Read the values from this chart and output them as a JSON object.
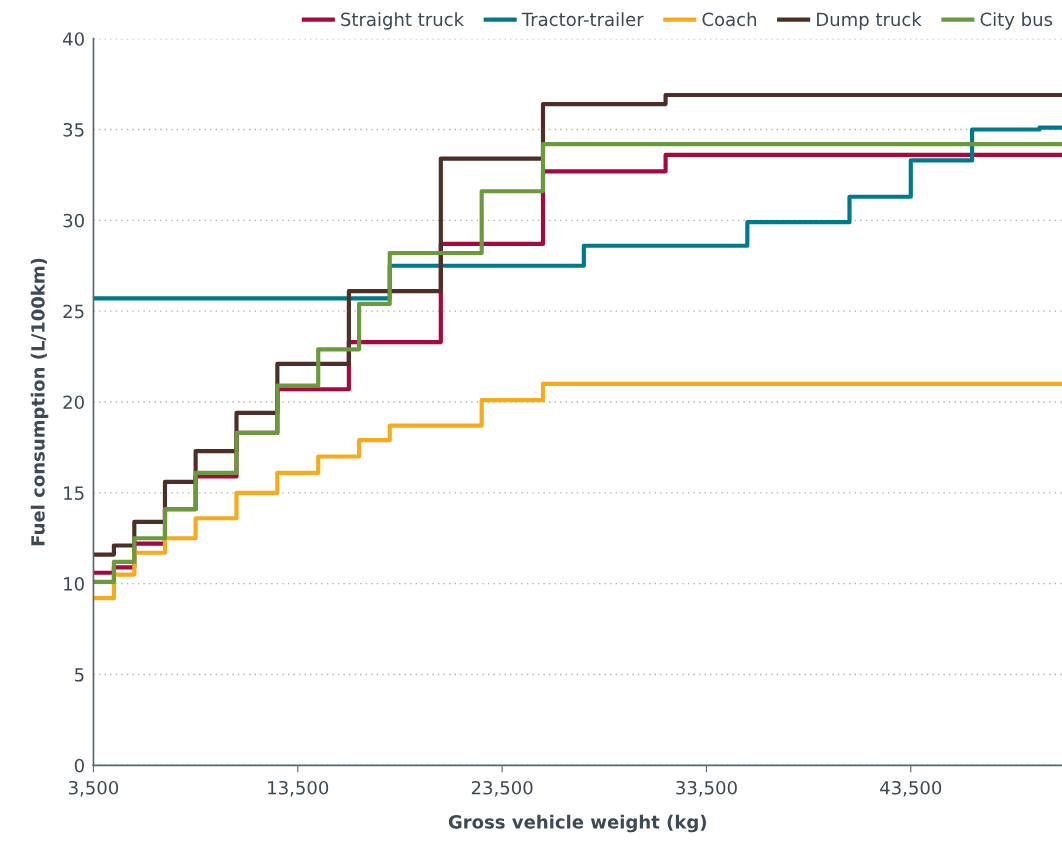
{
  "chart_data": {
    "type": "step",
    "xlabel": "Gross vehicle weight (kg)",
    "ylabel": "Fuel consumption (L/100km)",
    "xlim": [
      3500,
      50900
    ],
    "ylim": [
      0,
      40
    ],
    "xticks": [
      {
        "value": 3500,
        "label": "3,500"
      },
      {
        "value": 13500,
        "label": "13,500"
      },
      {
        "value": 23500,
        "label": "23,500"
      },
      {
        "value": 33500,
        "label": "33,500"
      },
      {
        "value": 43500,
        "label": "43,500"
      }
    ],
    "yticks": [
      0,
      5,
      10,
      15,
      20,
      25,
      30,
      35,
      40
    ],
    "grid": "y",
    "legend": "top right",
    "marker": "none",
    "line_style": "solid",
    "series": [
      {
        "name": "Straight truck",
        "color": "#a6093d",
        "x": [
          3500,
          4500,
          5500,
          7000,
          8500,
          10500,
          12500,
          16000,
          20500,
          25500,
          31500,
          50900
        ],
        "values": [
          10.6,
          10.9,
          12.2,
          14.1,
          15.9,
          18.3,
          20.7,
          23.3,
          28.7,
          32.7,
          33.6,
          33.6
        ]
      },
      {
        "name": "Tractor-trailer",
        "color": "#007a8a",
        "x": [
          3500,
          18000,
          27500,
          35500,
          40500,
          43500,
          46500,
          49800,
          50900
        ],
        "values": [
          25.7,
          27.5,
          28.6,
          29.9,
          31.3,
          33.3,
          35.0,
          35.1,
          35.1
        ]
      },
      {
        "name": "Coach",
        "color": "#f5ab1b",
        "x": [
          3500,
          4500,
          5500,
          7000,
          8500,
          10500,
          12500,
          14500,
          16500,
          18000,
          22500,
          25500,
          50900
        ],
        "values": [
          9.2,
          10.5,
          11.7,
          12.5,
          13.6,
          15.0,
          16.1,
          17.0,
          17.9,
          18.7,
          20.1,
          21.0,
          21.0
        ]
      },
      {
        "name": "Dump truck",
        "color": "#4e2f27",
        "x": [
          3500,
          4500,
          5500,
          7000,
          8500,
          10500,
          12500,
          16000,
          20500,
          25500,
          31500,
          50900
        ],
        "values": [
          11.6,
          12.1,
          13.4,
          15.6,
          17.3,
          19.4,
          22.1,
          26.1,
          33.4,
          36.4,
          36.9,
          36.9
        ]
      },
      {
        "name": "City bus",
        "color": "#6b9a3e",
        "x": [
          3500,
          4500,
          5500,
          7000,
          8500,
          10500,
          12500,
          14500,
          16500,
          18000,
          22500,
          25500,
          50900
        ],
        "values": [
          10.1,
          11.2,
          12.5,
          14.1,
          16.1,
          18.3,
          20.9,
          22.9,
          25.4,
          28.2,
          31.6,
          34.2,
          34.2
        ]
      }
    ]
  }
}
